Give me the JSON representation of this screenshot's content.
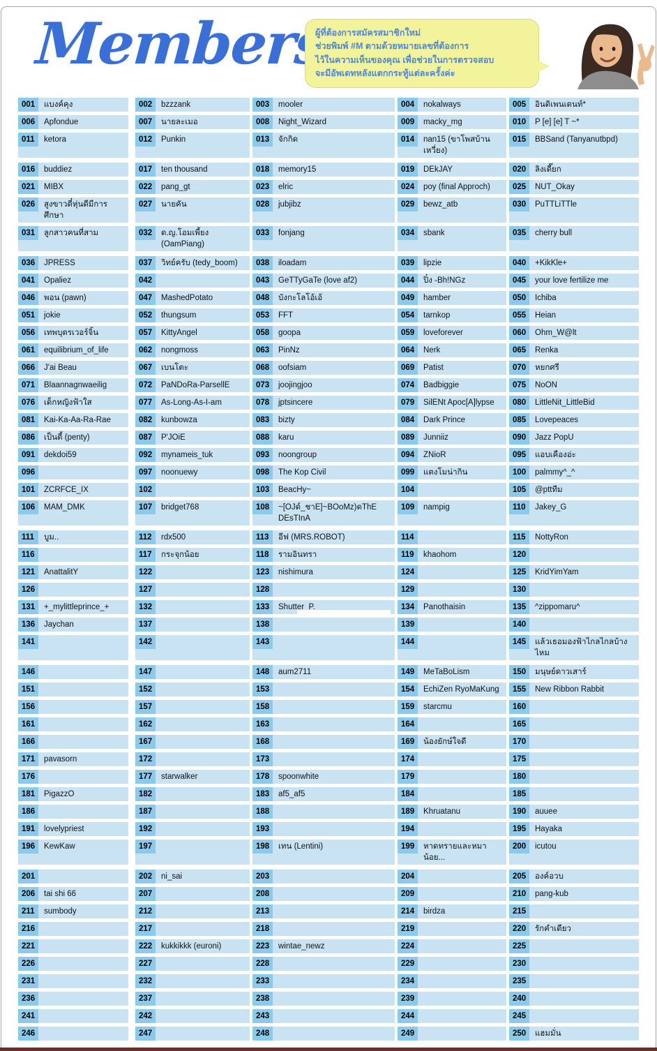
{
  "page": {
    "bg": "#ffffff",
    "frame_border": "#a6a6a6",
    "bottom_strip_color": "#6f2c2c"
  },
  "header": {
    "title": "Members",
    "title_color": "#3a6fd8",
    "bubble": {
      "bg": "#f3f39b",
      "border": "#d9d97f",
      "text_color": "#4e86d9",
      "lines": [
        "ผู้ที่ต้องการสมัครสมาชิกใหม่",
        "ช่วยพิมพ์ #M ตามด้วยหมายเลขที่ต้องการ",
        "ไว้ในความเห็นของคุณ เพื่อช่วยในการตรวจสอบ",
        "จะมีอัพเดทหลังแตกกระทู้แต่ละครั้งค่ะ"
      ]
    },
    "photo_description": "young-woman-peace-sign"
  },
  "table": {
    "num_bg": "#8cc9ea",
    "cell_bg": "#c9e3f3",
    "columns": 5,
    "gap_before_numbers": [
      16,
      36,
      111,
      146,
      201
    ],
    "hl_numbers": [
      "133"
    ],
    "members": [
      [
        "001",
        "แบงค์คุง"
      ],
      [
        "002",
        "bzzzank"
      ],
      [
        "003",
        "mooler"
      ],
      [
        "004",
        "nokalways"
      ],
      [
        "005",
        "อินดิเพนเดนท์*"
      ],
      [
        "006",
        "Apfondue"
      ],
      [
        "007",
        "นายละเมอ"
      ],
      [
        "008",
        "Night_Wizard"
      ],
      [
        "009",
        "macky_mg"
      ],
      [
        "010",
        "P [e] [e] T ~*"
      ],
      [
        "011",
        "ketora"
      ],
      [
        "012",
        "Punkin"
      ],
      [
        "013",
        "จักกิด"
      ],
      [
        "014",
        "nan15 (ขาโพสบ้านเหวี่ยง)"
      ],
      [
        "015",
        "BBSand (Tanyanutbpd)"
      ],
      [
        "016",
        "buddiez"
      ],
      [
        "017",
        "ten thousand"
      ],
      [
        "018",
        "memory15"
      ],
      [
        "019",
        "DEkJAY"
      ],
      [
        "020",
        "ลิงเดี๊ยก"
      ],
      [
        "021",
        "MIBX"
      ],
      [
        "022",
        "pang_gt"
      ],
      [
        "023",
        "elric"
      ],
      [
        "024",
        "poy (final Approch)"
      ],
      [
        "025",
        "NUT_Okay"
      ],
      [
        "026",
        "สูงขาวตี๋หุ่นดีมีการศึกษา"
      ],
      [
        "027",
        "นายคัน"
      ],
      [
        "028",
        "jubjibz"
      ],
      [
        "029",
        "bewz_atb"
      ],
      [
        "030",
        "PuTTLiTTle"
      ],
      [
        "031",
        "ลูกสาวคนที่สาม"
      ],
      [
        "032",
        "ด.ญ.โอมเพี้ยง (OamPiang)"
      ],
      [
        "033",
        "fonjang"
      ],
      [
        "034",
        "sbank"
      ],
      [
        "035",
        "cherry bull"
      ],
      [
        "036",
        "JPRESS"
      ],
      [
        "037",
        "วิทย์ครับ (tedy_boom)"
      ],
      [
        "038",
        "iloadam"
      ],
      [
        "039",
        "lipzie"
      ],
      [
        "040",
        "+KikKle+"
      ],
      [
        "041",
        "Opaliez"
      ],
      [
        "042",
        ""
      ],
      [
        "043",
        "GeTTyGaTe (love af2)"
      ],
      [
        "044",
        "ปิ๋ง -Bh!NGz"
      ],
      [
        "045",
        "your love fertilize me"
      ],
      [
        "046",
        "พอน (pawn)"
      ],
      [
        "047",
        "MashedPotato"
      ],
      [
        "048",
        "บังกะโลโอ้เอ้"
      ],
      [
        "049",
        "hamber"
      ],
      [
        "050",
        "Ichiba"
      ],
      [
        "051",
        "jokie"
      ],
      [
        "052",
        "thungsum"
      ],
      [
        "053",
        "FFT"
      ],
      [
        "054",
        "tarnkop"
      ],
      [
        "055",
        "Heian"
      ],
      [
        "056",
        "เทพบุตรเวอร์จิ้น"
      ],
      [
        "057",
        "KittyAngel"
      ],
      [
        "058",
        "goopa"
      ],
      [
        "059",
        "loveforever"
      ],
      [
        "060",
        "Ohm_W@lt"
      ],
      [
        "061",
        "equilibrium_of_life"
      ],
      [
        "062",
        "nongmoss"
      ],
      [
        "063",
        "PinNz"
      ],
      [
        "064",
        "Nerk"
      ],
      [
        "065",
        "Renka"
      ],
      [
        "066",
        "J'ai Beau"
      ],
      [
        "067",
        "เบนโตะ"
      ],
      [
        "068",
        "oofsiam"
      ],
      [
        "069",
        "Patist"
      ],
      [
        "070",
        "หยกศรี"
      ],
      [
        "071",
        "Blaannagnwaeilig"
      ],
      [
        "072",
        "PaNDoRa-ParsellE"
      ],
      [
        "073",
        "joojingjoo"
      ],
      [
        "074",
        "Badbiggie"
      ],
      [
        "075",
        "NoON"
      ],
      [
        "076",
        "เด็กหญิงฟ้าใส"
      ],
      [
        "077",
        "As-Long-As-I-am"
      ],
      [
        "078",
        "jptsincere"
      ],
      [
        "079",
        "SilENt Apoc[A]lypse"
      ],
      [
        "080",
        "LittleNit_LittleBid"
      ],
      [
        "081",
        "Kai-Ka-Aa-Ra-Rae"
      ],
      [
        "082",
        "kunbowza"
      ],
      [
        "083",
        "bizty"
      ],
      [
        "084",
        "Dark Prince"
      ],
      [
        "085",
        "Lovepeaces"
      ],
      [
        "086",
        "เป็นตี้ (penty)"
      ],
      [
        "087",
        "P'JOiE"
      ],
      [
        "088",
        "karu"
      ],
      [
        "089",
        "Junniiz"
      ],
      [
        "090",
        "Jazz PopU"
      ],
      [
        "091",
        "dekdoi59"
      ],
      [
        "092",
        "mynameis_tuk"
      ],
      [
        "093",
        "noongroup"
      ],
      [
        "094",
        "ZNioR"
      ],
      [
        "095",
        "แอบเคืองอ่ะ"
      ],
      [
        "096",
        ""
      ],
      [
        "097",
        "noonuewy"
      ],
      [
        "098",
        "The Kop Civil"
      ],
      [
        "099",
        "แตงโมน่ากิน"
      ],
      [
        "100",
        "palmmy^_^"
      ],
      [
        "101",
        "ZCRFCE_IX"
      ],
      [
        "102",
        ""
      ],
      [
        "103",
        "BeacHy~"
      ],
      [
        "104",
        ""
      ],
      [
        "105",
        "@pttทีม"
      ],
      [
        "106",
        "MAM_DMK"
      ],
      [
        "107",
        "bridget768"
      ],
      [
        "108",
        "~[OJด์_ชาE]~BOoMz)ดThE DEsTInA"
      ],
      [
        "109",
        "nampig"
      ],
      [
        "110",
        "Jakey_G"
      ],
      [
        "111",
        "บูม.."
      ],
      [
        "112",
        "rdx500"
      ],
      [
        "113",
        "อีฟ (MRS.ROBOT)"
      ],
      [
        "114",
        ""
      ],
      [
        "115",
        "NottyRon"
      ],
      [
        "116",
        ""
      ],
      [
        "117",
        "กระจุกน้อย"
      ],
      [
        "118",
        "รามอินทรา"
      ],
      [
        "119",
        "khaohom"
      ],
      [
        "120",
        ""
      ],
      [
        "121",
        "AnattalitY"
      ],
      [
        "122",
        ""
      ],
      [
        "123",
        "nishimura"
      ],
      [
        "124",
        ""
      ],
      [
        "125",
        "KridYimYam"
      ],
      [
        "126",
        ""
      ],
      [
        "127",
        ""
      ],
      [
        "128",
        ""
      ],
      [
        "129",
        ""
      ],
      [
        "130",
        ""
      ],
      [
        "131",
        "+_mylittleprince_+"
      ],
      [
        "132",
        ""
      ],
      [
        "133",
        "Shutter_P."
      ],
      [
        "134",
        "Panothaisin"
      ],
      [
        "135",
        "^zippomaru^"
      ],
      [
        "136",
        "Jaychan"
      ],
      [
        "137",
        ""
      ],
      [
        "138",
        ""
      ],
      [
        "139",
        ""
      ],
      [
        "140",
        ""
      ],
      [
        "141",
        ""
      ],
      [
        "142",
        ""
      ],
      [
        "143",
        ""
      ],
      [
        "144",
        ""
      ],
      [
        "145",
        "แล้วเธอมองฟ้าไกลไกลบ้างไหม"
      ],
      [
        "146",
        ""
      ],
      [
        "147",
        ""
      ],
      [
        "148",
        "aum2711"
      ],
      [
        "149",
        "MeTaBoLism"
      ],
      [
        "150",
        "มนุษย์ดาวเสาร์"
      ],
      [
        "151",
        ""
      ],
      [
        "152",
        ""
      ],
      [
        "153",
        ""
      ],
      [
        "154",
        "EchiZen RyoMaKung"
      ],
      [
        "155",
        "New Ribbon Rabbit"
      ],
      [
        "156",
        ""
      ],
      [
        "157",
        ""
      ],
      [
        "158",
        ""
      ],
      [
        "159",
        "starcmu"
      ],
      [
        "160",
        ""
      ],
      [
        "161",
        ""
      ],
      [
        "162",
        ""
      ],
      [
        "163",
        ""
      ],
      [
        "164",
        ""
      ],
      [
        "165",
        ""
      ],
      [
        "166",
        ""
      ],
      [
        "167",
        ""
      ],
      [
        "168",
        ""
      ],
      [
        "169",
        "น้องยักษ์ใจดี"
      ],
      [
        "170",
        ""
      ],
      [
        "171",
        "pavasorn"
      ],
      [
        "172",
        ""
      ],
      [
        "173",
        ""
      ],
      [
        "174",
        ""
      ],
      [
        "175",
        ""
      ],
      [
        "176",
        ""
      ],
      [
        "177",
        "starwalker"
      ],
      [
        "178",
        "spoonwhite"
      ],
      [
        "179",
        ""
      ],
      [
        "180",
        ""
      ],
      [
        "181",
        "PigazzO"
      ],
      [
        "182",
        ""
      ],
      [
        "183",
        "af5_af5"
      ],
      [
        "184",
        ""
      ],
      [
        "185",
        ""
      ],
      [
        "186",
        ""
      ],
      [
        "187",
        ""
      ],
      [
        "188",
        ""
      ],
      [
        "189",
        "Khruatanu"
      ],
      [
        "190",
        "auuee"
      ],
      [
        "191",
        "lovelypriest"
      ],
      [
        "192",
        ""
      ],
      [
        "193",
        ""
      ],
      [
        "194",
        ""
      ],
      [
        "195",
        "Hayaka"
      ],
      [
        "196",
        "KewKaw"
      ],
      [
        "197",
        ""
      ],
      [
        "198",
        "เทน (Lentini)"
      ],
      [
        "199",
        "หาดทรายและหมาน้อย..."
      ],
      [
        "200",
        "icutou"
      ],
      [
        "201",
        ""
      ],
      [
        "202",
        "ni_sai"
      ],
      [
        "203",
        ""
      ],
      [
        "204",
        ""
      ],
      [
        "205",
        "องค์อวบ"
      ],
      [
        "206",
        "tai shi 66"
      ],
      [
        "207",
        ""
      ],
      [
        "208",
        ""
      ],
      [
        "209",
        ""
      ],
      [
        "210",
        "pang-kub"
      ],
      [
        "211",
        "sumbody"
      ],
      [
        "212",
        ""
      ],
      [
        "213",
        ""
      ],
      [
        "214",
        "birdza"
      ],
      [
        "215",
        ""
      ],
      [
        "216",
        ""
      ],
      [
        "217",
        ""
      ],
      [
        "218",
        ""
      ],
      [
        "219",
        ""
      ],
      [
        "220",
        "รักคำเดียว"
      ],
      [
        "221",
        ""
      ],
      [
        "222",
        "kukkikkk (euroni)"
      ],
      [
        "223",
        "wintae_newz"
      ],
      [
        "224",
        ""
      ],
      [
        "225",
        ""
      ],
      [
        "226",
        ""
      ],
      [
        "227",
        ""
      ],
      [
        "228",
        ""
      ],
      [
        "229",
        ""
      ],
      [
        "230",
        ""
      ],
      [
        "231",
        ""
      ],
      [
        "232",
        ""
      ],
      [
        "233",
        ""
      ],
      [
        "234",
        ""
      ],
      [
        "235",
        ""
      ],
      [
        "236",
        ""
      ],
      [
        "237",
        ""
      ],
      [
        "238",
        ""
      ],
      [
        "239",
        ""
      ],
      [
        "240",
        ""
      ],
      [
        "241",
        ""
      ],
      [
        "242",
        ""
      ],
      [
        "243",
        ""
      ],
      [
        "244",
        ""
      ],
      [
        "245",
        ""
      ],
      [
        "246",
        ""
      ],
      [
        "247",
        ""
      ],
      [
        "248",
        ""
      ],
      [
        "249",
        ""
      ],
      [
        "250",
        "แฮมมั่น"
      ]
    ]
  }
}
